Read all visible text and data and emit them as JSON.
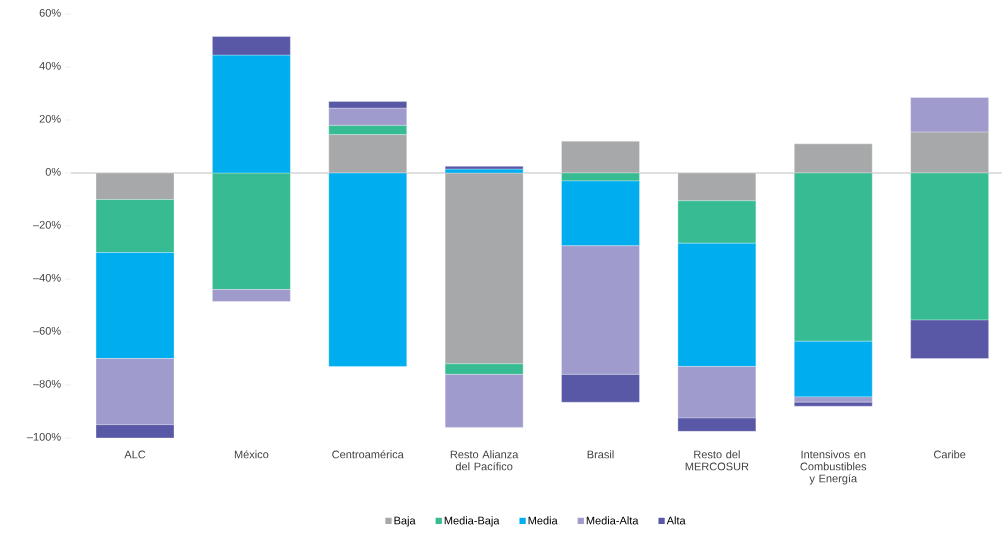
{
  "chart_data": {
    "type": "bar",
    "stacked": true,
    "categories": [
      "ALC",
      "México",
      "Centroamérica",
      "Resto Alianza del Pacífico",
      "Brasil",
      "Resto del MERCOSUR",
      "Intensivos en Combustibles y Energía",
      "Caribe"
    ],
    "series": [
      {
        "name": "Baja",
        "color": "#a7a8aa",
        "values": [
          -10,
          0,
          14.5,
          -72,
          12,
          -10.5,
          11,
          15.5
        ]
      },
      {
        "name": "Media-Baja",
        "color": "#37bb92",
        "values": [
          -20,
          -44,
          3.5,
          -4,
          -3,
          -16,
          -63.5,
          -55.5
        ]
      },
      {
        "name": "Media",
        "color": "#00aeef",
        "values": [
          -40,
          44.5,
          -73,
          1.5,
          -24.5,
          -46.5,
          -21,
          0
        ]
      },
      {
        "name": "Media-Alta",
        "color": "#9f9bcd",
        "values": [
          -25,
          -4.5,
          6.5,
          -20,
          -48.5,
          -19.5,
          -2,
          13
        ]
      },
      {
        "name": "Alta",
        "color": "#5858a6",
        "values": [
          -5,
          7,
          2.5,
          1,
          -10.5,
          -5,
          -1.5,
          -14.5
        ]
      }
    ],
    "ylim": [
      -100,
      60
    ],
    "yticks": [
      {
        "value": -100,
        "label": "–100%"
      },
      {
        "value": -80,
        "label": "–80%"
      },
      {
        "value": -60,
        "label": "–60%"
      },
      {
        "value": -40,
        "label": "–40%"
      },
      {
        "value": -20,
        "label": "–20%"
      },
      {
        "value": 0,
        "label": "0%"
      },
      {
        "value": 20,
        "label": "20%"
      },
      {
        "value": 40,
        "label": "40%"
      },
      {
        "value": 60,
        "label": "60%"
      }
    ],
    "ref_lines": [
      {
        "axis": "y",
        "value": 0,
        "color": "#c0c0c0"
      }
    ],
    "grid": false,
    "legend": "bottom"
  }
}
